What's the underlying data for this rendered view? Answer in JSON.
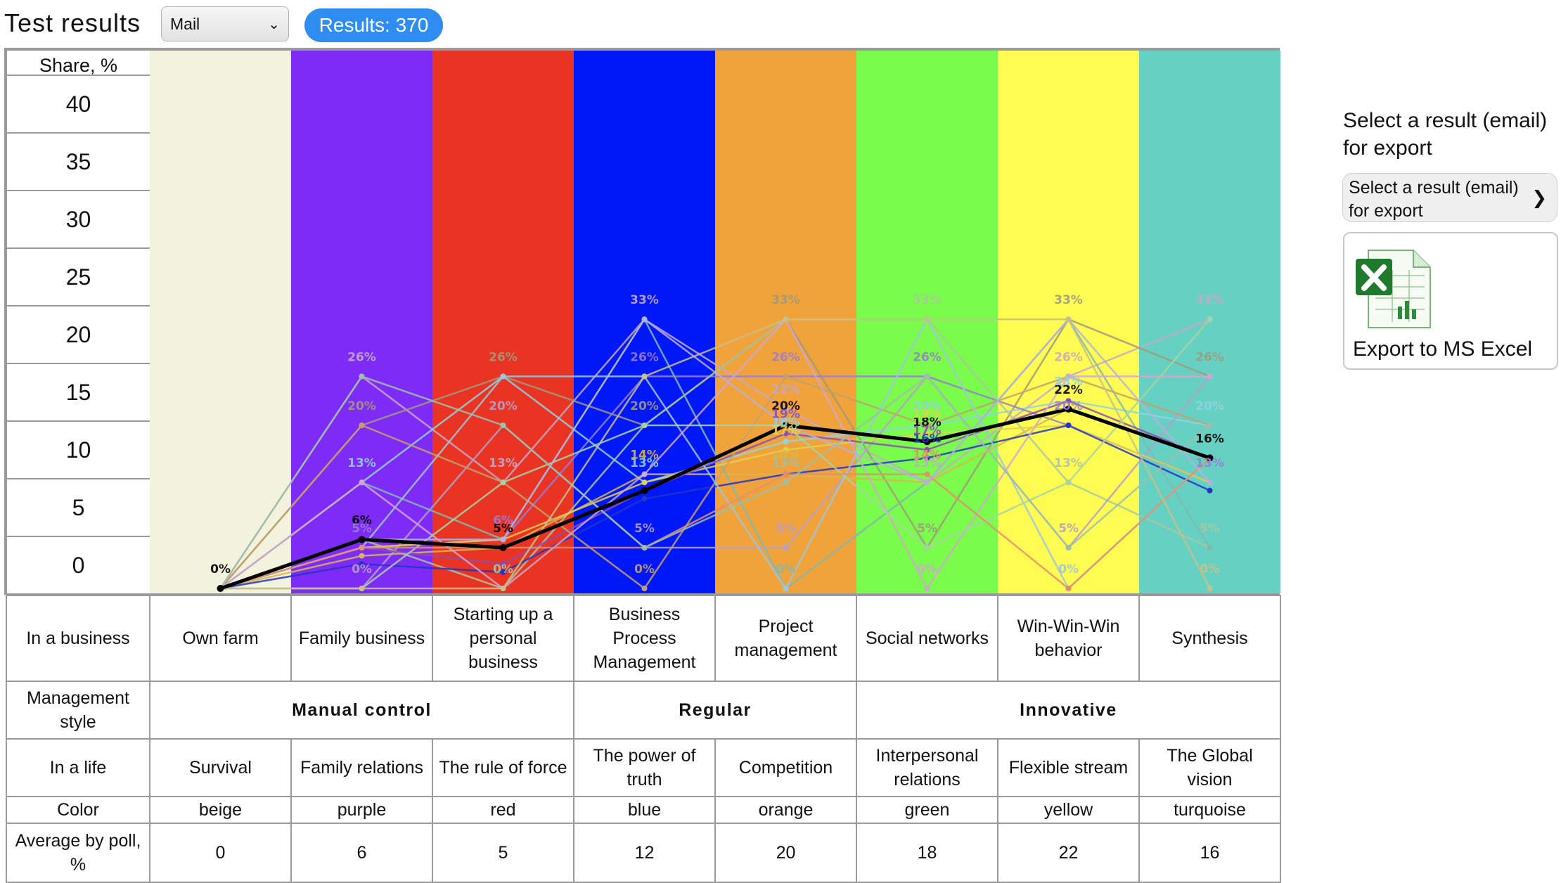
{
  "header": {
    "title": "Test results",
    "source_select": "Mail",
    "results_badge": "Results: 370"
  },
  "chart_data": {
    "type": "line",
    "ylabel": "Share, %",
    "y_ticks": [
      "40",
      "35",
      "30",
      "25",
      "20",
      "15",
      "10",
      "5",
      "0"
    ],
    "ylim": [
      0,
      40
    ],
    "categories": [
      "Own farm",
      "Family business",
      "Starting up a personal business",
      "Business Process Management",
      "Project management",
      "Social networks",
      "Win-Win-Win behavior",
      "Synthesis"
    ],
    "column_colors": [
      "#f3f2dc",
      "#7f2bf6",
      "#e93323",
      "#0018f5",
      "#f0a33b",
      "#7bfb4c",
      "#fefc52",
      "#66d1c2"
    ],
    "series": [
      {
        "values": [
          0,
          6,
          5,
          12,
          20,
          18,
          22,
          16
        ],
        "color": "#000000"
      },
      {
        "values": [
          0,
          26,
          13,
          33,
          22,
          13,
          26,
          33
        ],
        "color": "#c7a8c8"
      },
      {
        "values": [
          0,
          20,
          26,
          20,
          33,
          5,
          33,
          26
        ],
        "color": "#a09a7a"
      },
      {
        "values": [
          0,
          13,
          26,
          13,
          18,
          20,
          23,
          20
        ],
        "color": "#8fd3e0"
      },
      {
        "values": [
          0,
          5,
          6,
          26,
          26,
          26,
          20,
          13
        ],
        "color": "#9a7bd6"
      },
      {
        "values": [
          0,
          4,
          5,
          14,
          14,
          13,
          22,
          16
        ],
        "color": "#d6b84e"
      },
      {
        "values": [
          0,
          6,
          0,
          20,
          33,
          33,
          13,
          5
        ],
        "color": "#aac7a0"
      },
      {
        "values": [
          0,
          0,
          20,
          5,
          5,
          26,
          5,
          26
        ],
        "color": "#b59fc9"
      },
      {
        "values": [
          0,
          13,
          6,
          33,
          0,
          13,
          33,
          5
        ],
        "color": "#7fb9b0"
      },
      {
        "values": [
          0,
          5,
          6,
          13,
          17,
          19,
          20,
          13
        ],
        "color": "#e4d24a"
      },
      {
        "values": [
          0,
          3,
          2,
          11,
          14,
          16,
          20,
          12
        ],
        "color": "#2235c8"
      },
      {
        "values": [
          0,
          5,
          3,
          12,
          19,
          17,
          23,
          16
        ],
        "color": "#8c4fb0"
      },
      {
        "values": [
          0,
          20,
          13,
          0,
          26,
          20,
          26,
          20
        ],
        "color": "#c4a06c"
      },
      {
        "values": [
          0,
          5,
          26,
          26,
          0,
          33,
          0,
          16
        ],
        "color": "#9fc6dc"
      },
      {
        "values": [
          0,
          13,
          0,
          14,
          33,
          0,
          26,
          26
        ],
        "color": "#d2a6d0"
      },
      {
        "values": [
          0,
          0,
          13,
          20,
          20,
          5,
          13,
          33
        ],
        "color": "#a7d3a3"
      },
      {
        "values": [
          0,
          5,
          5,
          5,
          14,
          14,
          0,
          16
        ],
        "color": "#e28f6f"
      },
      {
        "values": [
          0,
          6,
          6,
          33,
          20,
          13,
          33,
          13
        ],
        "color": "#b6b0df"
      },
      {
        "values": [
          0,
          26,
          20,
          5,
          13,
          26,
          5,
          20
        ],
        "color": "#9cc0a9"
      },
      {
        "values": [
          0,
          0,
          0,
          26,
          33,
          33,
          33,
          0
        ],
        "color": "#c8c18a"
      }
    ],
    "point_labels": [
      "0%",
      "5%",
      "6%",
      "13%",
      "14%",
      "16%",
      "17%",
      "18%",
      "19%",
      "20%",
      "22%",
      "23%",
      "26%",
      "33%"
    ],
    "grid": true
  },
  "table": {
    "row_business": {
      "head": "In a business",
      "cells": [
        "Own farm",
        "Family business",
        "Starting up a personal business",
        "Business Process Management",
        "Project management",
        "Social networks",
        "Win-Win-Win behavior",
        "Synthesis"
      ]
    },
    "row_style": {
      "head": "Management style",
      "groups": [
        "Manual control",
        "Regular",
        "Innovative"
      ]
    },
    "row_life": {
      "head": "In a life",
      "cells": [
        "Survival",
        "Family relations",
        "The rule of force",
        "The power of truth",
        "Competition",
        "Interpersonal relations",
        "Flexible stream",
        "The Global vision"
      ]
    },
    "row_color": {
      "head": "Color",
      "cells": [
        "beige",
        "purple",
        "red",
        "blue",
        "orange",
        "green",
        "yellow",
        "turquoise"
      ]
    },
    "row_average": {
      "head": "Average by poll, %",
      "cells": [
        "0",
        "6",
        "5",
        "12",
        "20",
        "18",
        "22",
        "16"
      ]
    }
  },
  "export_panel": {
    "heading": "Select a result (email) for export",
    "select_placeholder": "Select a result (email) for export",
    "button_label": "Export to MS Excel",
    "icon": "excel-icon"
  }
}
